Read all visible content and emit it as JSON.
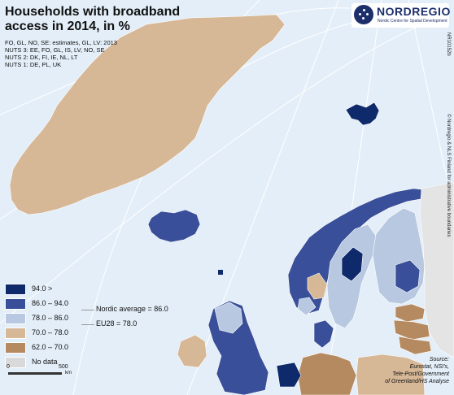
{
  "title": "Households with broadband access in 2014, in %",
  "notes": [
    "FO, GL, NO, SE: estimates, GL, LV: 2013",
    "NUTS 3: EE, FO, GL, IS, LV, NO, SE",
    "NUTS 2: DK, FI, IE, NL, LT",
    "NUTS 1: DE, PL, UK"
  ],
  "logo": {
    "name": "NORDREGIO",
    "tagline": "Nordic Centre for Spatial Development"
  },
  "map_ref": "NR10152b",
  "copyright": "© Nordregio & NLS Finland for administrative boundaries",
  "legend": [
    {
      "label": "94.0 >",
      "color": "#0e2a6b"
    },
    {
      "label": "86.0 – 94.0",
      "color": "#3a4f99"
    },
    {
      "label": "78.0 – 86.0",
      "color": "#b8c8e0"
    },
    {
      "label": "70.0 – 78.0",
      "color": "#d6b796"
    },
    {
      "label": "62.0 – 70.0",
      "color": "#b58a60"
    },
    {
      "label": "No data",
      "color": "#d9d9d9"
    }
  ],
  "reference_lines": [
    {
      "label": "Nordic average = 86.0"
    },
    {
      "label": "EU28 = 78.0"
    }
  ],
  "scale": {
    "start": "0",
    "end": "500",
    "unit": "km"
  },
  "source": "Source:\nEurostat, NSI's,\nTele-Post/Government\nof Greenland/HS Analyse",
  "colors": {
    "sea": "#e3eef8",
    "land_other": "#e4e4e4",
    "graticule": "#ffffff"
  }
}
